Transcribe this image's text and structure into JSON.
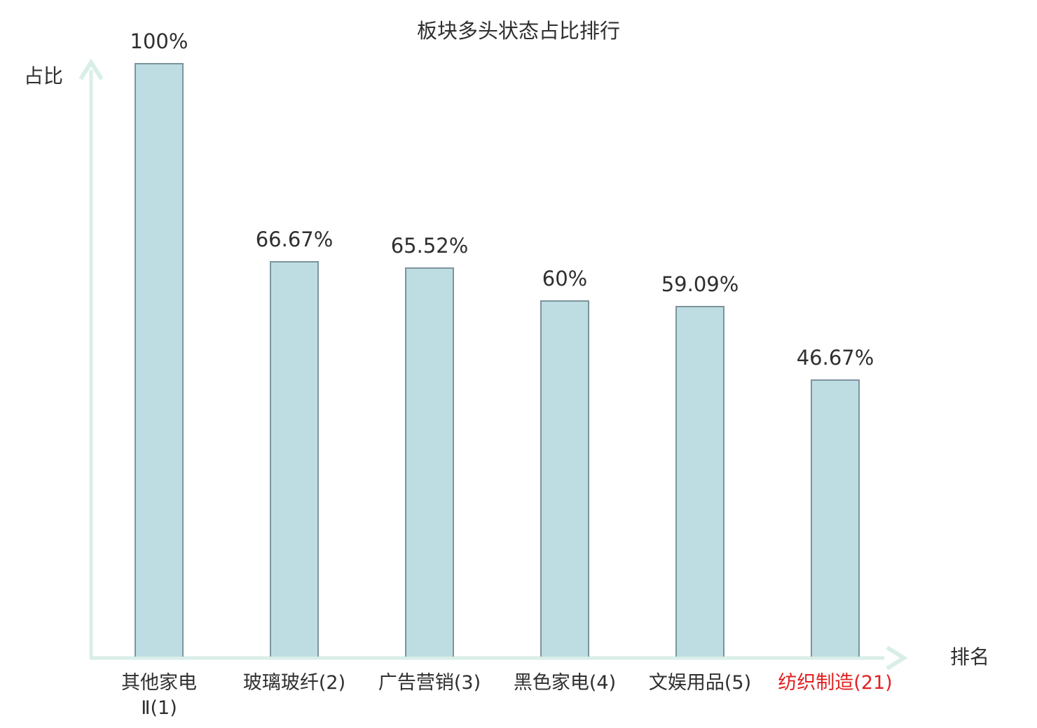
{
  "title": "板块多头状态占比排行",
  "colors": {
    "background": "#ffffff",
    "bar_fill": "#bedde2",
    "bar_border": "#7d949d",
    "axis": "#d9eee8",
    "text": "#2f2f2f",
    "highlight_red": "#e02020"
  },
  "chart_data": {
    "type": "bar",
    "title": "板块多头状态占比排行",
    "xlabel": "排名",
    "ylabel": "占比",
    "ylim": [
      0,
      100
    ],
    "unit": "%",
    "grid": false,
    "legend": false,
    "categories": [
      "其他家电Ⅱ(1)",
      "玻璃玻纤(2)",
      "广告营销(3)",
      "黑色家电(4)",
      "文娱用品(5)",
      "纺织制造(21)"
    ],
    "category_lines": [
      [
        "其他家电",
        "Ⅱ(1)"
      ],
      [
        "玻璃玻纤(2)"
      ],
      [
        "广告营销(3)"
      ],
      [
        "黑色家电(4)"
      ],
      [
        "文娱用品(5)"
      ],
      [
        "纺织制造(21)"
      ]
    ],
    "values": [
      100,
      66.67,
      65.52,
      60,
      59.09,
      46.67
    ],
    "value_labels": [
      "100%",
      "66.67%",
      "65.52%",
      "60%",
      "59.09%",
      "46.67%"
    ],
    "highlighted_index": 5,
    "highlight_note": "last category label rendered in red"
  }
}
